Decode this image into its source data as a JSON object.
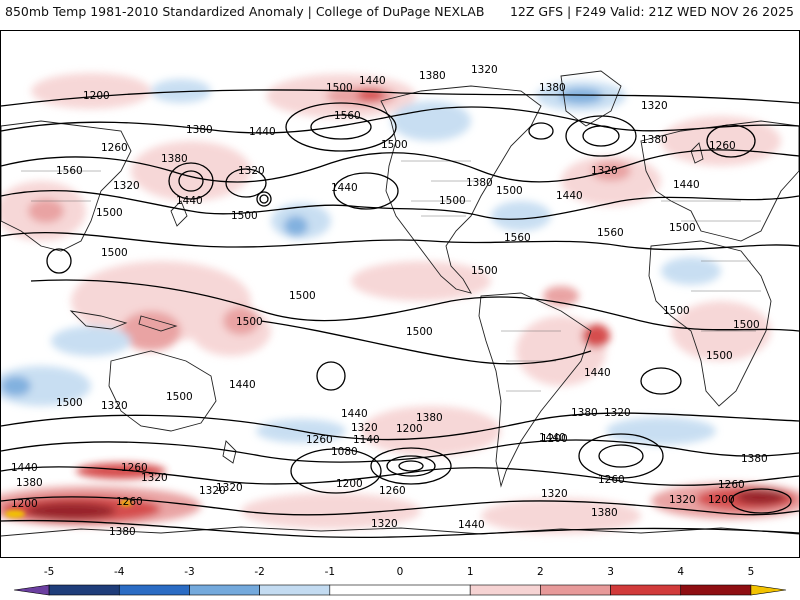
{
  "header": {
    "left": "850mb Temp 1981-2010 Standardized Anomaly | College of DuPage NEXLAB",
    "right": "12Z GFS | F249 Valid: 21Z WED NOV 26 2025"
  },
  "map": {
    "projection": "global equirectangular",
    "contour_variable": "850mb height (m)",
    "fill_variable": "temperature standardized anomaly",
    "contour_labels": [
      {
        "id": "l1",
        "text": "1200"
      },
      {
        "id": "l2",
        "text": "1440"
      },
      {
        "id": "l3",
        "text": "1380"
      },
      {
        "id": "l4",
        "text": "1320"
      },
      {
        "id": "l5",
        "text": "1380"
      },
      {
        "id": "l6",
        "text": "1320"
      },
      {
        "id": "l7",
        "text": "1500"
      },
      {
        "id": "l8",
        "text": "1560"
      },
      {
        "id": "l9",
        "text": "1380"
      },
      {
        "id": "l10",
        "text": "1440"
      },
      {
        "id": "l11",
        "text": "1260"
      },
      {
        "id": "l12",
        "text": "1380"
      },
      {
        "id": "l13",
        "text": "1320"
      },
      {
        "id": "l14",
        "text": "1560"
      },
      {
        "id": "l15",
        "text": "1320"
      },
      {
        "id": "l16",
        "text": "1440"
      },
      {
        "id": "l17",
        "text": "1500"
      },
      {
        "id": "l18",
        "text": "1440"
      },
      {
        "id": "l19",
        "text": "1500"
      },
      {
        "id": "l20",
        "text": "1500"
      },
      {
        "id": "l21",
        "text": "1380"
      },
      {
        "id": "l22",
        "text": "1500"
      },
      {
        "id": "l23",
        "text": "1440"
      },
      {
        "id": "l24",
        "text": "1320"
      },
      {
        "id": "l25",
        "text": "1380"
      },
      {
        "id": "l26",
        "text": "1260"
      },
      {
        "id": "l27",
        "text": "1440"
      },
      {
        "id": "l28",
        "text": "1560"
      },
      {
        "id": "l29",
        "text": "1560"
      },
      {
        "id": "l30",
        "text": "1500"
      },
      {
        "id": "l31",
        "text": "1500"
      },
      {
        "id": "l32",
        "text": "1500"
      },
      {
        "id": "l33",
        "text": "1500"
      },
      {
        "id": "l34",
        "text": "1500"
      },
      {
        "id": "l35",
        "text": "1500"
      },
      {
        "id": "l36",
        "text": "1500"
      },
      {
        "id": "l37",
        "text": "1500"
      },
      {
        "id": "l38",
        "text": "1500"
      },
      {
        "id": "l39",
        "text": "1500"
      },
      {
        "id": "l40",
        "text": "1440"
      },
      {
        "id": "l41",
        "text": "1440"
      },
      {
        "id": "l42",
        "text": "1500"
      },
      {
        "id": "l43",
        "text": "1320"
      },
      {
        "id": "l44",
        "text": "1500"
      },
      {
        "id": "l45",
        "text": "1440"
      },
      {
        "id": "l46",
        "text": "1380"
      },
      {
        "id": "l47",
        "text": "1320"
      },
      {
        "id": "l48",
        "text": "1200"
      },
      {
        "id": "l49",
        "text": "1260"
      },
      {
        "id": "l50",
        "text": "1140"
      },
      {
        "id": "l51",
        "text": "1080"
      },
      {
        "id": "l52",
        "text": "1200"
      },
      {
        "id": "l53",
        "text": "1260"
      },
      {
        "id": "l54",
        "text": "1320"
      },
      {
        "id": "l55",
        "text": "1440"
      },
      {
        "id": "l56",
        "text": "1380"
      },
      {
        "id": "l57",
        "text": "1320"
      },
      {
        "id": "l58",
        "text": "1200"
      },
      {
        "id": "l59",
        "text": "1260"
      },
      {
        "id": "l60",
        "text": "1320"
      },
      {
        "id": "l61",
        "text": "1380"
      },
      {
        "id": "l62",
        "text": "1260"
      },
      {
        "id": "l63",
        "text": "1200"
      },
      {
        "id": "l64",
        "text": "1320"
      },
      {
        "id": "l65",
        "text": "1380"
      },
      {
        "id": "l66",
        "text": "1440"
      },
      {
        "id": "l67",
        "text": "1380"
      },
      {
        "id": "l68",
        "text": "1260"
      },
      {
        "id": "l69",
        "text": "1320"
      },
      {
        "id": "l70",
        "text": "1260"
      },
      {
        "id": "l71",
        "text": "1320"
      },
      {
        "id": "l72",
        "text": "1440"
      },
      {
        "id": "l73",
        "text": "1380"
      },
      {
        "id": "l74",
        "text": "1320"
      },
      {
        "id": "l75",
        "text": "1200"
      }
    ]
  },
  "colorbar": {
    "min": -5.5,
    "max": 5.5,
    "ticks": [
      {
        "value": -5,
        "label": "-5"
      },
      {
        "value": -4,
        "label": "-4"
      },
      {
        "value": -3,
        "label": "-3"
      },
      {
        "value": -2,
        "label": "-2"
      },
      {
        "value": -1,
        "label": "-1"
      },
      {
        "value": 0,
        "label": "0"
      },
      {
        "value": 1,
        "label": "1"
      },
      {
        "value": 2,
        "label": "2"
      },
      {
        "value": 3,
        "label": "3"
      },
      {
        "value": 4,
        "label": "4"
      },
      {
        "value": 5,
        "label": "5"
      }
    ],
    "bins": [
      {
        "from": -5.5,
        "to": -5,
        "color": "#6b3fa0"
      },
      {
        "from": -5,
        "to": -4,
        "color": "#1f3d7a"
      },
      {
        "from": -4,
        "to": -3,
        "color": "#2b6cc4"
      },
      {
        "from": -3,
        "to": -2,
        "color": "#74a9dc"
      },
      {
        "from": -2,
        "to": -1,
        "color": "#c3dbf1"
      },
      {
        "from": -1,
        "to": 1,
        "color": "#ffffff"
      },
      {
        "from": 1,
        "to": 2,
        "color": "#f6d3d3"
      },
      {
        "from": 2,
        "to": 3,
        "color": "#e79a9a"
      },
      {
        "from": 3,
        "to": 4,
        "color": "#d13b3b"
      },
      {
        "from": 4,
        "to": 5,
        "color": "#8e0e12"
      },
      {
        "from": 5,
        "to": 5.5,
        "color": "#f2c200"
      }
    ]
  }
}
